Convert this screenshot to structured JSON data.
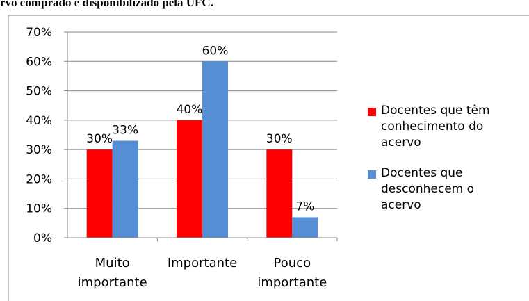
{
  "caption": "rvo comprado e disponibilizado pela UFC.",
  "chart_data": {
    "type": "bar",
    "categories": [
      "Muito importante",
      "Importante",
      "Pouco importante"
    ],
    "series": [
      {
        "name": "Docentes que têm conhecimento do acervo",
        "color": "#ff0000",
        "values": [
          30,
          40,
          30
        ],
        "value_labels": [
          "30%",
          "40%",
          "30%"
        ]
      },
      {
        "name": "Docentes que desconhecem o acervo",
        "color": "#558ed5",
        "values": [
          33,
          60,
          7
        ],
        "value_labels": [
          "33%",
          "60%",
          "7%"
        ]
      }
    ],
    "ylim": [
      0,
      70
    ],
    "yticks": [
      {
        "value": 0,
        "label": "0%"
      },
      {
        "value": 10,
        "label": "10%"
      },
      {
        "value": 20,
        "label": "20%"
      },
      {
        "value": 30,
        "label": "30%"
      },
      {
        "value": 40,
        "label": "40%"
      },
      {
        "value": 50,
        "label": "50%"
      },
      {
        "value": 60,
        "label": "60%"
      },
      {
        "value": 70,
        "label": "70%"
      }
    ],
    "grid": true,
    "legend": "right"
  }
}
